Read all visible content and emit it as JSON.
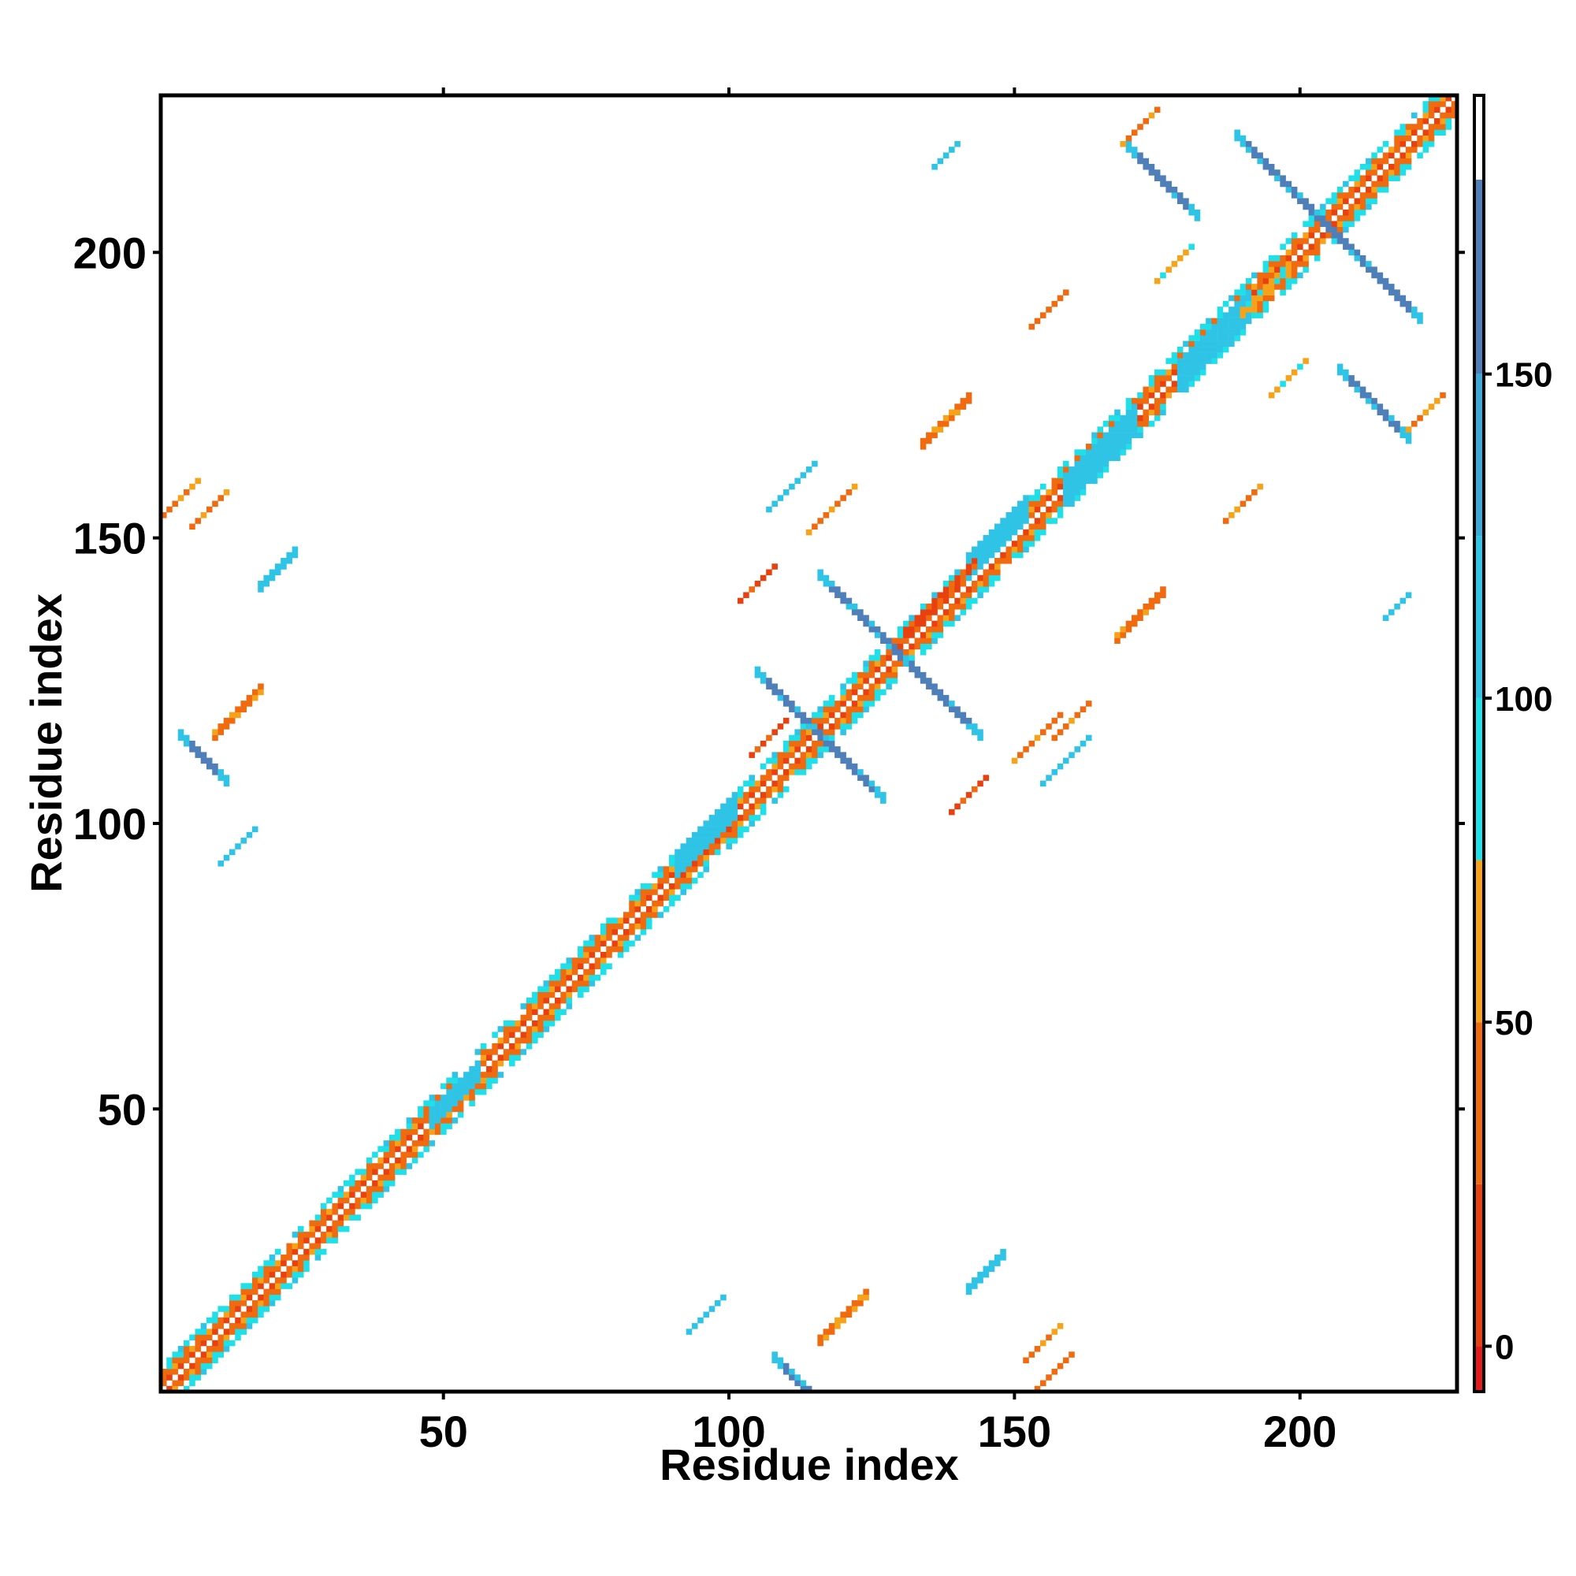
{
  "chart_data": {
    "type": "heatmap",
    "title": "",
    "xlabel": "Residue index",
    "ylabel": "Residue index",
    "xlim": [
      1,
      227
    ],
    "ylim": [
      1,
      227
    ],
    "x_ticks": [
      50,
      100,
      150,
      200
    ],
    "y_ticks": [
      50,
      100,
      150,
      200
    ],
    "grid": false,
    "colorbar": {
      "ticks": [
        0,
        50,
        100,
        150
      ],
      "range": [
        -7,
        193
      ],
      "bands": [
        {
          "from": -7,
          "to": 0,
          "color": "#E41A1C"
        },
        {
          "from": 0,
          "to": 25,
          "color": "#E8410F"
        },
        {
          "from": 25,
          "to": 50,
          "color": "#F06A10"
        },
        {
          "from": 50,
          "to": 75,
          "color": "#F7A31A"
        },
        {
          "from": 75,
          "to": 100,
          "color": "#1FE0E8"
        },
        {
          "from": 100,
          "to": 125,
          "color": "#2FC4E6"
        },
        {
          "from": 125,
          "to": 150,
          "color": "#3AAAD8"
        },
        {
          "from": 150,
          "to": 180,
          "color": "#4F7FB9"
        },
        {
          "from": 180,
          "to": 193,
          "color": "#FFFFFF"
        }
      ]
    },
    "diagonal_band": {
      "x_from": 1,
      "x_to": 227,
      "half_width": 4
    },
    "features": [
      {
        "kind": "anti",
        "cx": 116,
        "cy": 116,
        "len": 11,
        "width": 2,
        "value": 165
      },
      {
        "kind": "anti",
        "cx": 130,
        "cy": 130,
        "len": 14,
        "width": 2,
        "value": 165
      },
      {
        "kind": "anti",
        "cx": 205,
        "cy": 205,
        "len": 16,
        "width": 2,
        "value": 165
      },
      {
        "kind": "anti",
        "cx": 112,
        "cy": 3,
        "len": 4,
        "width": 2,
        "value": 165
      },
      {
        "kind": "anti",
        "cx": 8,
        "cy": 112,
        "len": 4,
        "width": 2,
        "value": 165
      },
      {
        "kind": "anti",
        "cx": 176,
        "cy": 213,
        "len": 6,
        "width": 2,
        "value": 165
      },
      {
        "kind": "anti",
        "cx": 213,
        "cy": 174,
        "len": 6,
        "width": 2,
        "value": 165
      },
      {
        "kind": "par",
        "cx": 138,
        "cy": 171,
        "len": 4,
        "width": 2,
        "value": 30
      },
      {
        "kind": "par",
        "cx": 172,
        "cy": 137,
        "len": 4,
        "width": 2,
        "value": 30
      },
      {
        "kind": "par",
        "cx": 185,
        "cy": 185,
        "len": 6,
        "width": 6,
        "value": 105
      },
      {
        "kind": "par",
        "cx": 165,
        "cy": 165,
        "len": 6,
        "width": 6,
        "value": 105
      },
      {
        "kind": "par",
        "cx": 96,
        "cy": 98,
        "len": 5,
        "width": 5,
        "value": 105
      },
      {
        "kind": "par",
        "cx": 52,
        "cy": 53,
        "len": 4,
        "width": 4,
        "value": 105
      },
      {
        "kind": "par",
        "cx": 147,
        "cy": 150,
        "len": 5,
        "width": 5,
        "value": 105
      },
      {
        "kind": "par",
        "cx": 137,
        "cy": 140,
        "len": 6,
        "width": 2,
        "value": 20
      },
      {
        "kind": "par",
        "cx": 107,
        "cy": 115,
        "len": 3,
        "width": 1,
        "value": 10
      },
      {
        "kind": "par",
        "cx": 105,
        "cy": 142,
        "len": 3,
        "width": 1,
        "value": 10
      },
      {
        "kind": "par",
        "cx": 142,
        "cy": 105,
        "len": 3,
        "width": 1,
        "value": 10
      },
      {
        "kind": "par",
        "cx": 154,
        "cy": 115,
        "len": 4,
        "width": 1,
        "value": 35
      },
      {
        "kind": "par",
        "cx": 160,
        "cy": 118,
        "len": 3,
        "width": 1,
        "value": 35
      },
      {
        "kind": "par",
        "cx": 118,
        "cy": 155,
        "len": 4,
        "width": 1,
        "value": 35
      },
      {
        "kind": "par",
        "cx": 120,
        "cy": 14,
        "len": 4,
        "width": 2,
        "value": 40
      },
      {
        "kind": "par",
        "cx": 14,
        "cy": 120,
        "len": 4,
        "width": 2,
        "value": 40
      },
      {
        "kind": "par",
        "cx": 9,
        "cy": 155,
        "len": 3,
        "width": 1,
        "value": 40
      },
      {
        "kind": "par",
        "cx": 155,
        "cy": 9,
        "len": 3,
        "width": 1,
        "value": 40
      },
      {
        "kind": "par",
        "cx": 194,
        "cy": 194,
        "len": 4,
        "width": 2,
        "value": 60
      },
      {
        "kind": "par",
        "cx": 172,
        "cy": 222,
        "len": 3,
        "width": 1,
        "value": 25
      },
      {
        "kind": "par",
        "cx": 222,
        "cy": 172,
        "len": 3,
        "width": 1,
        "value": 25
      },
      {
        "kind": "par",
        "cx": 178,
        "cy": 198,
        "len": 3,
        "width": 1,
        "value": 55
      },
      {
        "kind": "par",
        "cx": 198,
        "cy": 178,
        "len": 3,
        "width": 1,
        "value": 55
      },
      {
        "kind": "par",
        "cx": 164,
        "cy": 163,
        "len": 3,
        "width": 1,
        "value": 110
      },
      {
        "kind": "par",
        "cx": 21,
        "cy": 145,
        "len": 3,
        "width": 2,
        "value": 110
      },
      {
        "kind": "par",
        "cx": 145,
        "cy": 22,
        "len": 3,
        "width": 2,
        "value": 110
      },
      {
        "kind": "par",
        "cx": 96,
        "cy": 14,
        "len": 3,
        "width": 1,
        "value": 120
      },
      {
        "kind": "par",
        "cx": 14,
        "cy": 96,
        "len": 3,
        "width": 1,
        "value": 120
      },
      {
        "kind": "par",
        "cx": 111,
        "cy": 159,
        "len": 4,
        "width": 1,
        "value": 120
      },
      {
        "kind": "par",
        "cx": 159,
        "cy": 111,
        "len": 4,
        "width": 1,
        "value": 120
      },
      {
        "kind": "par",
        "cx": 138,
        "cy": 217,
        "len": 2,
        "width": 1,
        "value": 120
      },
      {
        "kind": "par",
        "cx": 217,
        "cy": 138,
        "len": 2,
        "width": 1,
        "value": 120
      },
      {
        "kind": "par",
        "cx": 157,
        "cy": 4,
        "len": 3,
        "width": 1,
        "value": 30
      },
      {
        "kind": "par",
        "cx": 4,
        "cy": 157,
        "len": 3,
        "width": 1,
        "value": 30
      },
      {
        "kind": "par",
        "cx": 156,
        "cy": 190,
        "len": 3,
        "width": 1,
        "value": 45
      },
      {
        "kind": "par",
        "cx": 190,
        "cy": 156,
        "len": 3,
        "width": 1,
        "value": 45
      }
    ]
  }
}
